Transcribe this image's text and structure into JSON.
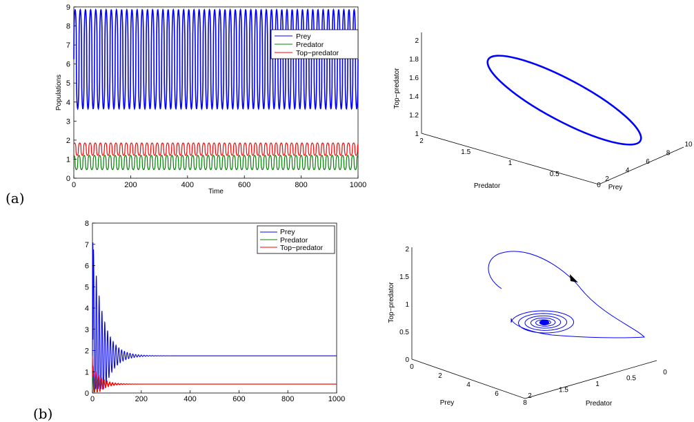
{
  "panel_labels": {
    "a": "(a)",
    "b": "(b)"
  },
  "colors": {
    "prey": "#0000ff",
    "predator": "#008000",
    "top": "#ff0000",
    "arrow": "#000000"
  },
  "chart_data": [
    {
      "id": "a-time",
      "type": "line",
      "xlabel": "Time",
      "ylabel": "Populations",
      "xlim": [
        0,
        1000
      ],
      "ylim": [
        0,
        9
      ],
      "xticks": [
        "0",
        "200",
        "400",
        "600",
        "800",
        "1000"
      ],
      "yticks": [
        "0",
        "1",
        "2",
        "3",
        "4",
        "5",
        "6",
        "7",
        "8",
        "9"
      ],
      "legend_position": "top-right",
      "oscillation": {
        "cycles": 55
      },
      "series": [
        {
          "name": "Prey",
          "min": 3.65,
          "max": 8.85
        },
        {
          "name": "Predator",
          "min": 0.45,
          "max": 1.2
        },
        {
          "name": "Top−predator",
          "min": 1.2,
          "max": 1.85
        }
      ]
    },
    {
      "id": "a-phase",
      "type": "line",
      "projection": "3d",
      "xlabel": "Prey",
      "ylabel": "Predator",
      "zlabel": "Top−predator",
      "prey_ticks": [
        "2",
        "4",
        "6",
        "8",
        "10"
      ],
      "predator_ticks": [
        "2",
        "1.5",
        "1",
        "0.5",
        "0"
      ],
      "top_ticks": [
        "1",
        "1.2",
        "1.4",
        "1.6",
        "1.8",
        "2"
      ],
      "note": "limit cycle"
    },
    {
      "id": "b-time",
      "type": "line",
      "xlabel": "",
      "ylabel": "",
      "xlim": [
        0,
        1000
      ],
      "ylim": [
        0,
        8
      ],
      "xticks": [
        "0",
        "200",
        "400",
        "600",
        "800",
        "1000"
      ],
      "yticks": [
        "0",
        "1",
        "2",
        "3",
        "4",
        "5",
        "6",
        "7",
        "8"
      ],
      "legend_position": "top-right",
      "series": [
        {
          "name": "Prey",
          "initial_peak": 7.3,
          "equilibrium": 1.75
        },
        {
          "name": "Predator",
          "initial_peak": 0.9,
          "equilibrium": 0.42
        },
        {
          "name": "Top−predator",
          "initial_peak": 1.75,
          "equilibrium": 0.42
        }
      ]
    },
    {
      "id": "b-phase",
      "type": "line",
      "projection": "3d",
      "xlabel": "Prey",
      "ylabel": "Predator",
      "zlabel": "Top−predator",
      "prey_ticks": [
        "0",
        "2",
        "4",
        "6",
        "8"
      ],
      "predator_ticks": [
        "2",
        "1.5",
        "1",
        "0.5",
        "0"
      ],
      "top_ticks": [
        "0",
        "0.5",
        "1",
        "1.5",
        "2"
      ],
      "note": "spiral to stable focus"
    }
  ]
}
